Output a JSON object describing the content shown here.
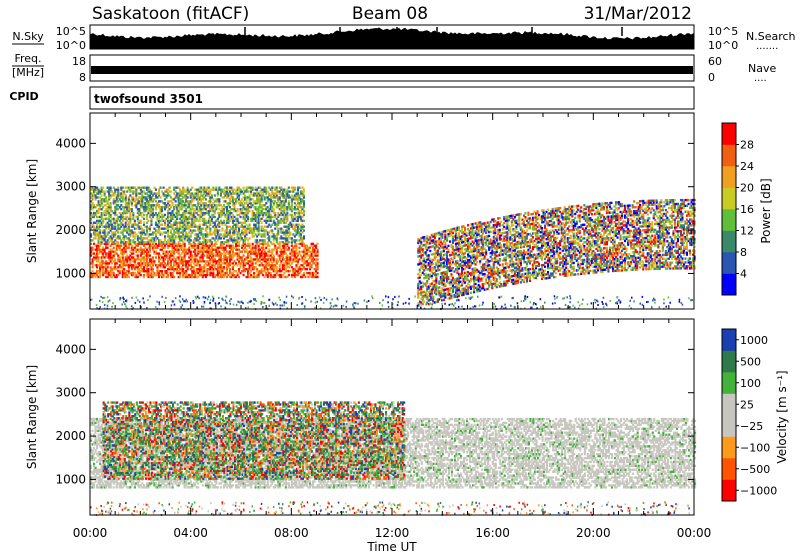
{
  "header": {
    "station": "Saskatoon (fitACF)",
    "beam": "Beam 08",
    "date": "31/Mar/2012"
  },
  "nsky_panel": {
    "left_label": "N.Sky",
    "left_ticks": [
      "10^5",
      "10^0"
    ],
    "right_ticks": [
      "10^5",
      "10^0"
    ],
    "right_label": "N.Search",
    "right_label_dots": "......."
  },
  "freq_panel": {
    "left_label_top": "Freq.",
    "left_label_units": "[MHz]",
    "left_ticks": [
      "18",
      "8"
    ],
    "right_ticks": [
      "60",
      "0"
    ],
    "right_label": "Nave",
    "right_label_dots": "...."
  },
  "cpid_panel": {
    "left_label": "CPID",
    "value": "twofsound 3501"
  },
  "colors": {
    "power_scale": [
      "#0000ff",
      "#2a55b0",
      "#3a8a6a",
      "#5fbf3a",
      "#c8cc22",
      "#f0a020",
      "#f06010",
      "#ff0000"
    ],
    "velocity_scale": [
      "#ff0000",
      "#ff5500",
      "#ff9a1a",
      "#c7c7bf",
      "#c7c7bf",
      "#42b23a",
      "#2e7a4a",
      "#1a3fb0"
    ],
    "ground_scatter": "#c7c7bf"
  },
  "chart_data": [
    {
      "type": "heatmap",
      "title": "",
      "xlabel": "",
      "ylabel": "Slant Range [km]",
      "xlim": [
        0,
        24
      ],
      "ylim": [
        180,
        4700
      ],
      "x_tick_labels": [
        "00:00",
        "04:00",
        "08:00",
        "12:00",
        "16:00",
        "20:00",
        "00:00"
      ],
      "y_ticks": [
        1000,
        2000,
        3000,
        4000
      ],
      "colorbar": {
        "label": "Power [dB]",
        "min": 0,
        "max": 32,
        "ticks": [
          4,
          8,
          12,
          16,
          20,
          24,
          28
        ]
      },
      "bands": [
        {
          "name": "low-range scatter",
          "t_start": 0.0,
          "t_end": 9.0,
          "range_km": [
            900,
            1700
          ],
          "power_db": 26
        },
        {
          "name": "mid-range scatter",
          "t_start": 0.0,
          "t_end": 8.5,
          "range_km": [
            1700,
            3000
          ],
          "power_db": 11
        },
        {
          "name": "arc scatter",
          "t_start": 13.0,
          "t_end": 24.0,
          "range_km": [
            900,
            2500
          ],
          "power_db": 22
        }
      ]
    },
    {
      "type": "heatmap",
      "title": "",
      "xlabel": "Time UT",
      "ylabel": "Slant Range [km]",
      "xlim": [
        0,
        24
      ],
      "ylim": [
        180,
        4700
      ],
      "x_tick_labels": [
        "00:00",
        "04:00",
        "08:00",
        "12:00",
        "16:00",
        "20:00",
        "00:00"
      ],
      "y_ticks": [
        1000,
        2000,
        3000,
        4000
      ],
      "colorbar": {
        "label": "Velocity [m s⁻¹]",
        "tick_labels": [
          "1000",
          "500",
          "100",
          "25",
          "−25",
          "−100",
          "−500",
          "−1000"
        ]
      },
      "bands": [
        {
          "name": "ground scatter",
          "t_start": 0.0,
          "t_end": 24.0,
          "range_km": [
            800,
            2400
          ],
          "velocity_ms": 0
        },
        {
          "name": "ionospheric scatter",
          "t_start": 0.5,
          "t_end": 12.5,
          "range_km": [
            1000,
            2800
          ],
          "velocity_ms": 150
        }
      ]
    }
  ]
}
